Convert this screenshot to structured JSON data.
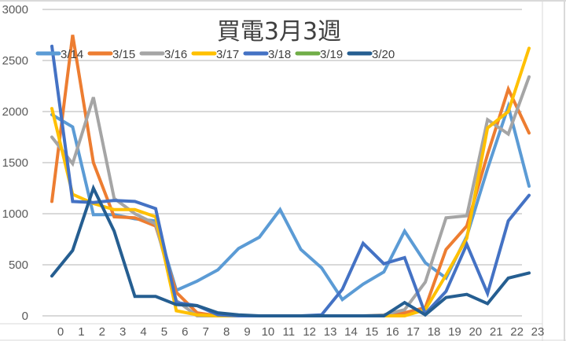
{
  "chart_data": {
    "type": "line",
    "title": "買電3月3週",
    "xlabel": "",
    "ylabel": "",
    "ylim": [
      0,
      3000
    ],
    "yticks": [
      0,
      500,
      1000,
      1500,
      2000,
      2500,
      3000
    ],
    "grid": true,
    "legend_position": "top",
    "categories": [
      0,
      1,
      2,
      3,
      4,
      5,
      6,
      7,
      8,
      9,
      10,
      11,
      12,
      13,
      14,
      15,
      16,
      17,
      18,
      19,
      20,
      21,
      22,
      23
    ],
    "series": [
      {
        "name": "3/14",
        "color": "#5B9BD5",
        "values": [
          1970,
          1850,
          990,
          990,
          950,
          930,
          250,
          340,
          450,
          660,
          770,
          1040,
          650,
          470,
          160,
          310,
          430,
          830,
          520,
          370,
          780,
          1440,
          2050,
          1270
        ]
      },
      {
        "name": "3/15",
        "color": "#ED7D31",
        "values": [
          1120,
          2750,
          1500,
          970,
          960,
          880,
          230,
          30,
          0,
          0,
          0,
          0,
          0,
          0,
          0,
          0,
          0,
          30,
          80,
          650,
          880,
          1580,
          2220,
          1790
        ]
      },
      {
        "name": "3/16",
        "color": "#A5A5A5",
        "values": [
          1750,
          1490,
          2140,
          1150,
          1000,
          900,
          150,
          0,
          0,
          0,
          0,
          0,
          0,
          0,
          0,
          0,
          10,
          60,
          330,
          960,
          980,
          1920,
          1780,
          2340
        ]
      },
      {
        "name": "3/17",
        "color": "#FFC000",
        "values": [
          2030,
          1190,
          1100,
          1040,
          1040,
          970,
          50,
          10,
          0,
          0,
          0,
          0,
          0,
          0,
          0,
          0,
          0,
          0,
          60,
          400,
          760,
          1840,
          2000,
          2620
        ]
      },
      {
        "name": "3/18",
        "color": "#4472C4",
        "values": [
          2640,
          1120,
          1110,
          1130,
          1120,
          1050,
          130,
          100,
          10,
          0,
          0,
          0,
          0,
          10,
          260,
          710,
          510,
          570,
          20,
          240,
          700,
          220,
          930,
          1180
        ]
      },
      {
        "name": "3/19",
        "color": "#70AD47",
        "values": []
      },
      {
        "name": "3/20",
        "color": "#255E91",
        "values": [
          390,
          640,
          1250,
          830,
          190,
          190,
          110,
          100,
          30,
          10,
          0,
          0,
          0,
          0,
          0,
          0,
          0,
          130,
          10,
          180,
          210,
          120,
          370,
          420
        ]
      }
    ]
  }
}
